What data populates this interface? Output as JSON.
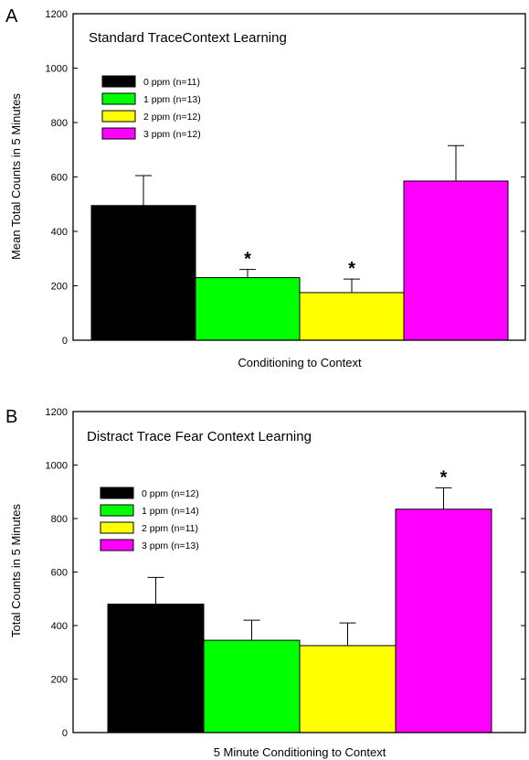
{
  "chart_data": [
    {
      "type": "bar",
      "panel": "A",
      "title": "Standard TraceContext Learning",
      "xlabel": "Conditioning to Context",
      "ylabel": "Mean Total Counts in 5 Minutes",
      "ylim": [
        0,
        1200
      ],
      "yticks": [
        0,
        200,
        400,
        600,
        800,
        1000,
        1200
      ],
      "legend_position": "top-left",
      "series": [
        {
          "name": "0 ppm (n=11)",
          "value": 495,
          "error": 110,
          "color": "#000000",
          "significant": false
        },
        {
          "name": "1 ppm (n=13)",
          "value": 230,
          "error": 30,
          "color": "#00ff00",
          "significant": true
        },
        {
          "name": "2 ppm (n=12)",
          "value": 175,
          "error": 50,
          "color": "#ffff00",
          "significant": true
        },
        {
          "name": "3 ppm (n=12)",
          "value": 585,
          "error": 130,
          "color": "#ff00ff",
          "significant": false
        }
      ],
      "significance_marker": "*"
    },
    {
      "type": "bar",
      "panel": "B",
      "title": "Distract Trace Fear Context Learning",
      "xlabel": "5 Minute Conditioning to Context",
      "ylabel": "Total Counts in 5 Minutes",
      "ylim": [
        0,
        1200
      ],
      "yticks": [
        0,
        200,
        400,
        600,
        800,
        1000,
        1200
      ],
      "legend_position": "left",
      "series": [
        {
          "name": "0 ppm (n=12)",
          "value": 480,
          "error": 100,
          "color": "#000000",
          "significant": false
        },
        {
          "name": "1 ppm (n=14)",
          "value": 345,
          "error": 75,
          "color": "#00ff00",
          "significant": false
        },
        {
          "name": "2 ppm (n=11)",
          "value": 325,
          "error": 85,
          "color": "#ffff00",
          "significant": false
        },
        {
          "name": "3 ppm (n=13)",
          "value": 835,
          "error": 80,
          "color": "#ff00ff",
          "significant": true
        }
      ],
      "significance_marker": "*"
    }
  ]
}
